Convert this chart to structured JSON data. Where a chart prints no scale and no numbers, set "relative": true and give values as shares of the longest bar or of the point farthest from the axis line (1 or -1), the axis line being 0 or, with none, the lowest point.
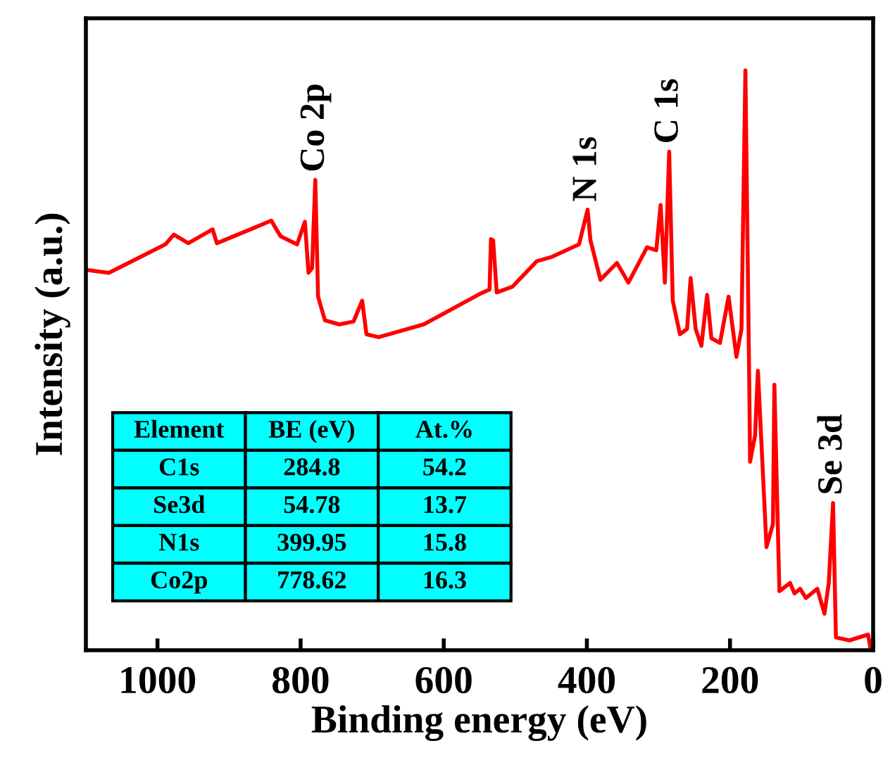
{
  "chart_data": {
    "type": "line",
    "relative": true,
    "xlabel": "Binding energy (eV)",
    "ylabel": "Intensity (a.u.)",
    "xlim": [
      1100,
      0
    ],
    "xticks": [
      1000,
      800,
      600,
      400,
      200,
      0
    ],
    "grid": false,
    "legend": false,
    "marker": "none",
    "line_style": "solid",
    "x": [
      1099,
      1068,
      989,
      977,
      957,
      923,
      917,
      870,
      841,
      828,
      805,
      794,
      789,
      784,
      779.5,
      775.6,
      766,
      746,
      726,
      714,
      708,
      691,
      628,
      549,
      536,
      534,
      531,
      526,
      504,
      470,
      450,
      411,
      399,
      395,
      381,
      358,
      342,
      316,
      303,
      297,
      291,
      285,
      280,
      270,
      260,
      255,
      248,
      240,
      232,
      226,
      214,
      202,
      191,
      184,
      178.5,
      173,
      172,
      165,
      161,
      149,
      140,
      138,
      131,
      116,
      110,
      102,
      94,
      78,
      68,
      62,
      56,
      52,
      33,
      7,
      4
    ],
    "series": [
      {
        "color": "#ff0000",
        "values": [
          0.656,
          0.651,
          0.7,
          0.717,
          0.702,
          0.726,
          0.702,
          0.726,
          0.741,
          0.714,
          0.7,
          0.739,
          0.651,
          0.659,
          0.811,
          0.61,
          0.569,
          0.562,
          0.567,
          0.603,
          0.545,
          0.54,
          0.562,
          0.615,
          0.622,
          0.709,
          0.707,
          0.617,
          0.627,
          0.671,
          0.678,
          0.7,
          0.76,
          0.707,
          0.639,
          0.668,
          0.634,
          0.695,
          0.69,
          0.768,
          0.634,
          0.86,
          0.603,
          0.545,
          0.554,
          0.642,
          0.554,
          0.525,
          0.613,
          0.538,
          0.53,
          0.61,
          0.506,
          0.554,
          1.0,
          0.45,
          0.325,
          0.37,
          0.482,
          0.178,
          0.218,
          0.458,
          0.102,
          0.116,
          0.098,
          0.106,
          0.09,
          0.106,
          0.063,
          0.116,
          0.254,
          0.022,
          0.017,
          0.027,
          0.005
        ]
      }
    ],
    "annotations": [
      {
        "text": "Co 2p",
        "x": 779.5,
        "y": 0.811
      },
      {
        "text": "N 1s",
        "x": 399,
        "y": 0.76
      },
      {
        "text": "C 1s",
        "x": 285,
        "y": 0.86
      },
      {
        "text": "Se 3d",
        "x": 56,
        "y": 0.254
      },
      "Element",
      "BE (eV)",
      "At.%",
      "C1s",
      "284.8",
      "54.2",
      "Se3d",
      "54.78",
      "13.7",
      "N1s",
      "399.95",
      "15.8",
      "Co2p",
      "778.62",
      "16.3"
    ]
  }
}
